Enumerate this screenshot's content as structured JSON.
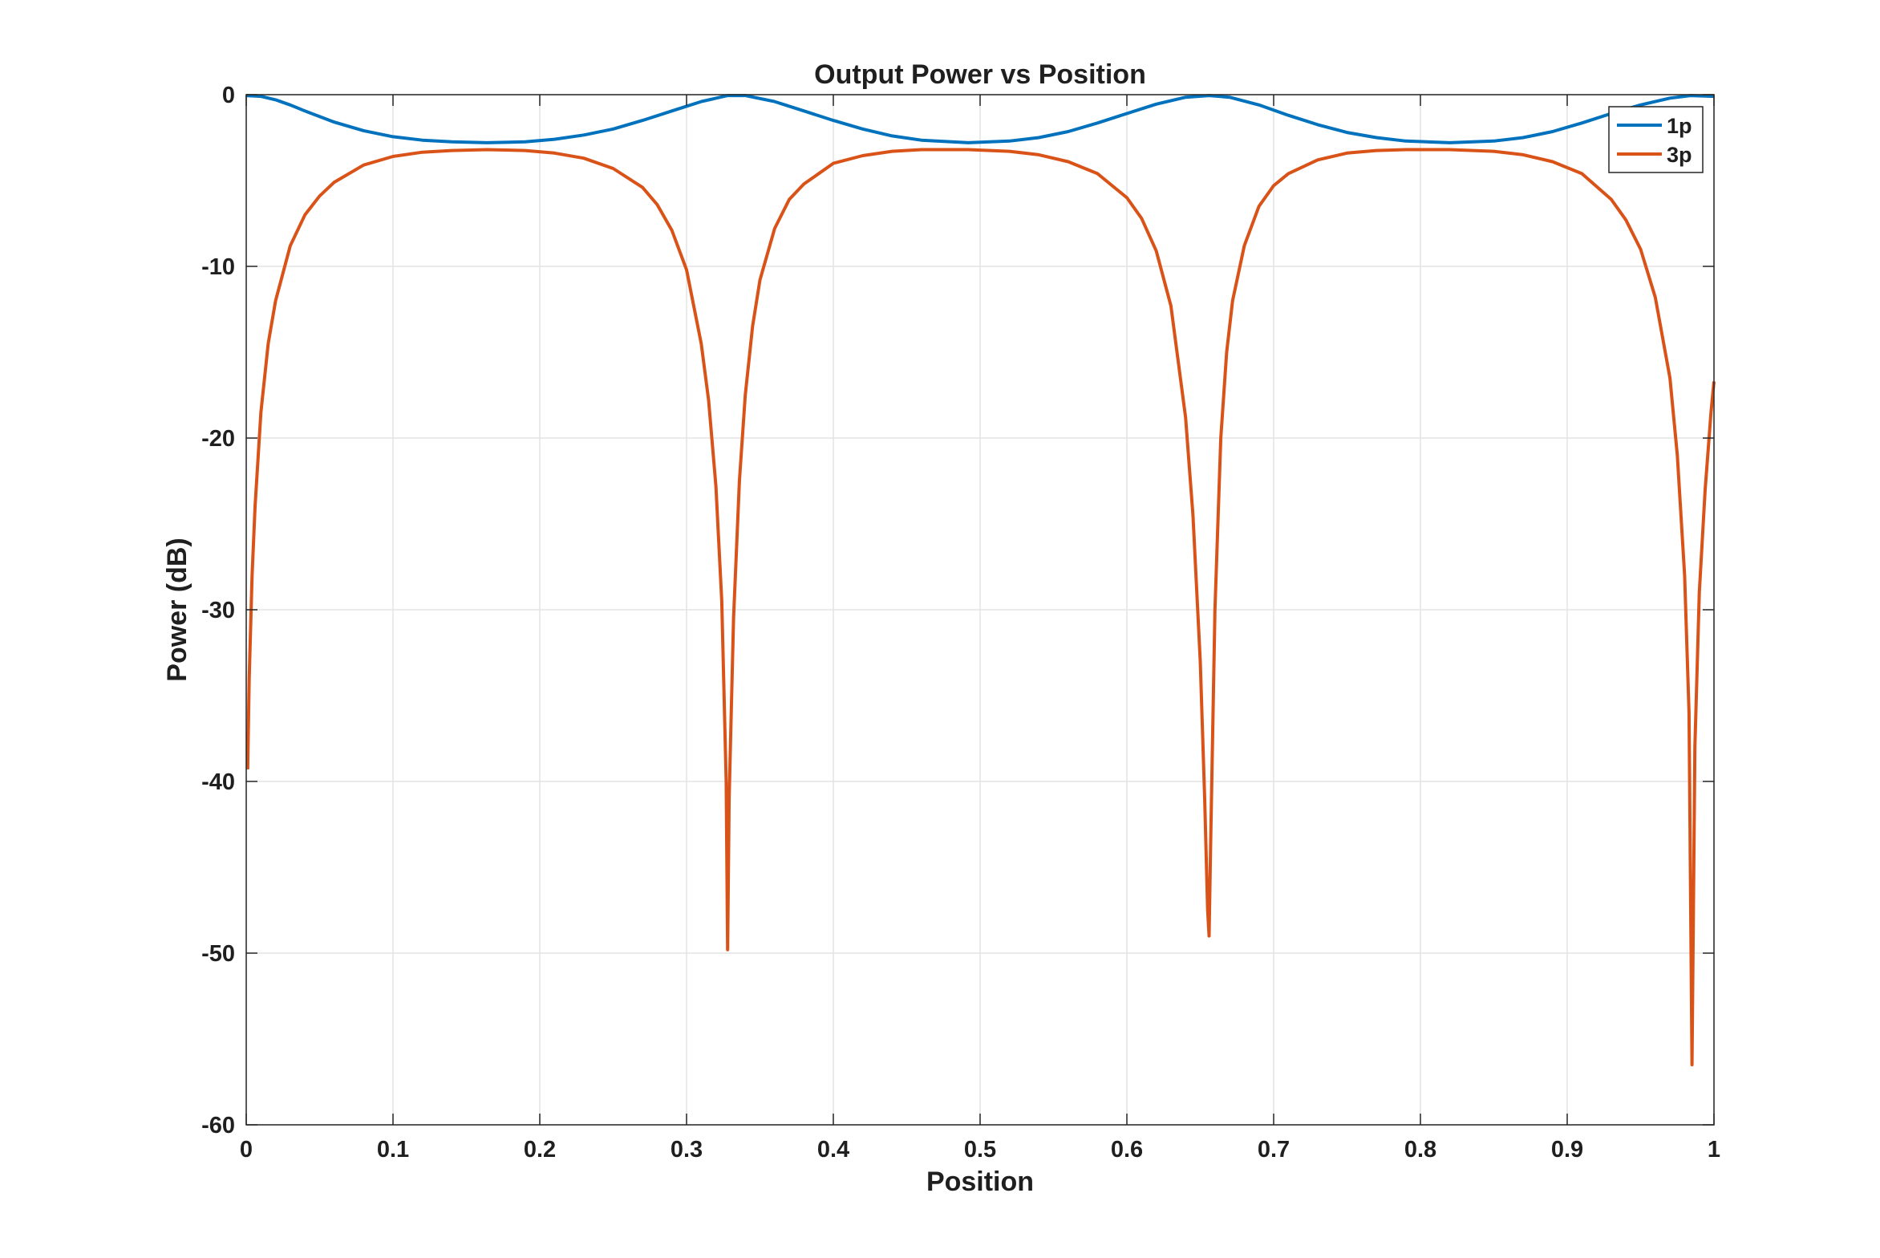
{
  "chart_data": {
    "type": "line",
    "title": "Output Power vs Position",
    "xlabel": "Position",
    "ylabel": "Power (dB)",
    "xlim": [
      0,
      1
    ],
    "ylim": [
      -60,
      0
    ],
    "xticks": [
      0,
      0.1,
      0.2,
      0.3,
      0.4,
      0.5,
      0.6,
      0.7,
      0.8,
      0.9,
      1
    ],
    "xtick_labels": [
      "0",
      "0.1",
      "0.2",
      "0.3",
      "0.4",
      "0.5",
      "0.6",
      "0.7",
      "0.8",
      "0.9",
      "1"
    ],
    "yticks": [
      0,
      -10,
      -20,
      -30,
      -40,
      -50,
      -60
    ],
    "ytick_labels": [
      "0",
      "-10",
      "-20",
      "-30",
      "-40",
      "-50",
      "-60"
    ],
    "grid": true,
    "legend_position": "top-right",
    "series": [
      {
        "name": "1p",
        "color": "#0072BD",
        "x": [
          0,
          0.01,
          0.02,
          0.03,
          0.04,
          0.06,
          0.08,
          0.1,
          0.12,
          0.14,
          0.164,
          0.19,
          0.21,
          0.23,
          0.25,
          0.27,
          0.29,
          0.31,
          0.328,
          0.34,
          0.36,
          0.38,
          0.4,
          0.42,
          0.44,
          0.46,
          0.492,
          0.52,
          0.54,
          0.56,
          0.58,
          0.6,
          0.62,
          0.64,
          0.656,
          0.67,
          0.69,
          0.71,
          0.73,
          0.75,
          0.77,
          0.79,
          0.82,
          0.85,
          0.87,
          0.89,
          0.91,
          0.93,
          0.95,
          0.97,
          0.984,
          1
        ],
        "y": [
          -0.05,
          -0.1,
          -0.3,
          -0.6,
          -0.95,
          -1.6,
          -2.1,
          -2.45,
          -2.65,
          -2.75,
          -2.8,
          -2.75,
          -2.6,
          -2.35,
          -2.0,
          -1.5,
          -0.95,
          -0.4,
          -0.05,
          -0.05,
          -0.4,
          -0.95,
          -1.5,
          -2.0,
          -2.4,
          -2.65,
          -2.8,
          -2.7,
          -2.5,
          -2.15,
          -1.65,
          -1.1,
          -0.55,
          -0.15,
          -0.05,
          -0.15,
          -0.6,
          -1.2,
          -1.75,
          -2.2,
          -2.5,
          -2.7,
          -2.8,
          -2.7,
          -2.5,
          -2.15,
          -1.65,
          -1.1,
          -0.6,
          -0.2,
          -0.05,
          -0.1
        ]
      },
      {
        "name": "3p",
        "color": "#D95319",
        "x": [
          0.001,
          0.002,
          0.004,
          0.006,
          0.01,
          0.015,
          0.02,
          0.03,
          0.04,
          0.05,
          0.06,
          0.08,
          0.1,
          0.12,
          0.14,
          0.164,
          0.19,
          0.21,
          0.23,
          0.25,
          0.27,
          0.28,
          0.29,
          0.3,
          0.31,
          0.315,
          0.32,
          0.324,
          0.327,
          0.328,
          0.329,
          0.332,
          0.336,
          0.34,
          0.345,
          0.35,
          0.36,
          0.37,
          0.38,
          0.4,
          0.42,
          0.44,
          0.46,
          0.492,
          0.52,
          0.54,
          0.56,
          0.58,
          0.6,
          0.61,
          0.62,
          0.63,
          0.64,
          0.645,
          0.65,
          0.653,
          0.655,
          0.656,
          0.657,
          0.66,
          0.664,
          0.668,
          0.672,
          0.68,
          0.69,
          0.7,
          0.71,
          0.73,
          0.75,
          0.77,
          0.79,
          0.82,
          0.85,
          0.87,
          0.89,
          0.91,
          0.93,
          0.94,
          0.95,
          0.96,
          0.97,
          0.975,
          0.98,
          0.983,
          0.985,
          0.987,
          0.99,
          0.994,
          0.998,
          1
        ],
        "y": [
          -39.3,
          -34,
          -28,
          -24,
          -18.5,
          -14.5,
          -12,
          -8.8,
          -7.0,
          -5.9,
          -5.1,
          -4.1,
          -3.6,
          -3.35,
          -3.25,
          -3.2,
          -3.25,
          -3.4,
          -3.7,
          -4.3,
          -5.4,
          -6.4,
          -7.9,
          -10.2,
          -14.5,
          -17.8,
          -22.8,
          -29.5,
          -40,
          -49.8,
          -41,
          -30.5,
          -22.5,
          -17.5,
          -13.5,
          -10.8,
          -7.8,
          -6.1,
          -5.2,
          -4.0,
          -3.55,
          -3.3,
          -3.2,
          -3.2,
          -3.3,
          -3.5,
          -3.9,
          -4.6,
          -6.0,
          -7.2,
          -9.1,
          -12.3,
          -18.8,
          -24.5,
          -33,
          -41,
          -47.5,
          -49,
          -44,
          -30,
          -20,
          -15,
          -12,
          -8.8,
          -6.5,
          -5.3,
          -4.6,
          -3.8,
          -3.4,
          -3.25,
          -3.2,
          -3.2,
          -3.3,
          -3.5,
          -3.9,
          -4.6,
          -6.1,
          -7.3,
          -9.0,
          -11.8,
          -16.5,
          -21,
          -28,
          -36,
          -56.5,
          -38,
          -29,
          -23,
          -18.5,
          -16.7
        ]
      }
    ]
  }
}
